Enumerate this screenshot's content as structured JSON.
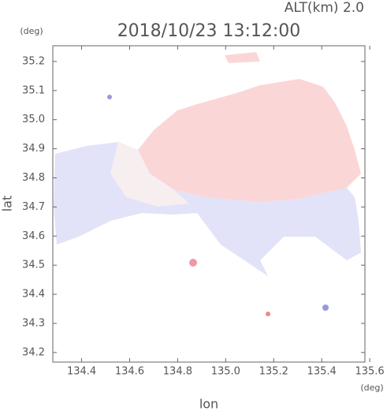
{
  "chart_data": {
    "type": "field",
    "title": "2018/10/23 13:12:00",
    "subtitle": "ALT(km) 2.0",
    "x_label": "lon",
    "y_label": "lat",
    "x_unit": "(deg)",
    "y_unit": "(deg)",
    "xlim": [
      134.28,
      135.58
    ],
    "ylim": [
      34.167,
      35.254
    ],
    "xticks": [
      134.4,
      134.6,
      134.8,
      {
        "value": 135,
        "label": "135.0"
      },
      135.2,
      135.4,
      135.6
    ],
    "yticks": [
      34.2,
      34.3,
      34.4,
      34.5,
      34.6,
      34.7,
      34.8,
      34.9,
      {
        "value": 35,
        "label": "35.0"
      },
      35.1,
      35.2
    ]
  }
}
